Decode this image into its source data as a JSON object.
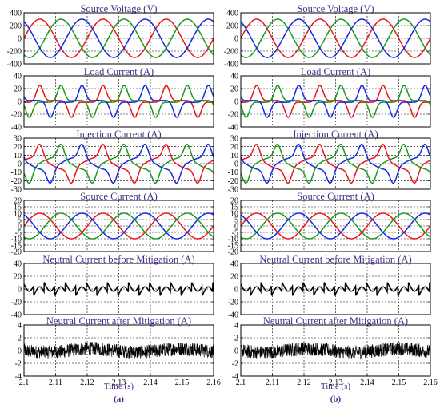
{
  "colors": {
    "phase_a": "#e8141b",
    "phase_b": "#1a9a1a",
    "phase_c": "#1428e0",
    "single": "#000000",
    "title": "#4a2a8a"
  },
  "panels": [
    {
      "label": "(a)",
      "xlabel": "Time (s)",
      "xticks": [
        "2.1",
        "2.11",
        "2.12",
        "2.13",
        "2.14",
        "2.15",
        "2.16"
      ]
    },
    {
      "label": "(b)",
      "xlabel": "Time (s)",
      "xticks": [
        "2.1",
        "2.11",
        "2.12",
        "2.13",
        "2.14",
        "2.15",
        "2.16"
      ]
    }
  ],
  "chart_data": [
    {
      "type": "line",
      "title": "Source Voltage (V)",
      "xlim": [
        2.1,
        2.16
      ],
      "ylim": [
        -400,
        400
      ],
      "yticks": [
        "400",
        "200",
        "0",
        "-200",
        "-400"
      ],
      "waveform": "sine",
      "fundamental_hz": 50,
      "amplitude": 300,
      "series": [
        {
          "color": "#e8141b",
          "phase_deg": 0
        },
        {
          "color": "#1a9a1a",
          "phase_deg": -120
        },
        {
          "color": "#1428e0",
          "phase_deg": 120
        }
      ],
      "grid": true
    },
    {
      "type": "line",
      "title": "Load Current (A)",
      "xlim": [
        2.1,
        2.16
      ],
      "ylim": [
        -40,
        40
      ],
      "yticks": [
        "40",
        "20",
        "0",
        "-20",
        "-40"
      ],
      "waveform": "nonlinear-load",
      "fundamental_hz": 50,
      "amplitude": 25,
      "series": [
        {
          "color": "#e8141b",
          "phase_deg": 0
        },
        {
          "color": "#1a9a1a",
          "phase_deg": -120
        },
        {
          "color": "#1428e0",
          "phase_deg": 120
        }
      ],
      "grid": true
    },
    {
      "type": "line",
      "title": "Injection Current (A)",
      "xlim": [
        2.1,
        2.16
      ],
      "ylim": [
        -30,
        30
      ],
      "yticks": [
        "30",
        "20",
        "10",
        "0",
        "-10",
        "-20",
        "-30"
      ],
      "waveform": "injection",
      "fundamental_hz": 50,
      "amplitude": 20,
      "series": [
        {
          "color": "#e8141b",
          "phase_deg": 0
        },
        {
          "color": "#1a9a1a",
          "phase_deg": -120
        },
        {
          "color": "#1428e0",
          "phase_deg": 120
        }
      ],
      "grid": true
    },
    {
      "type": "line",
      "title": "Source Current (A)",
      "xlim": [
        2.1,
        2.16
      ],
      "ylim": [
        -20,
        20
      ],
      "yticks": [
        "20",
        "15",
        "10",
        "5",
        "0",
        "-5",
        "-10",
        "-15",
        "-20"
      ],
      "waveform": "sine",
      "fundamental_hz": 50,
      "amplitude": 10,
      "series": [
        {
          "color": "#e8141b",
          "phase_deg": 0
        },
        {
          "color": "#1a9a1a",
          "phase_deg": -120
        },
        {
          "color": "#1428e0",
          "phase_deg": 120
        }
      ],
      "grid": true
    },
    {
      "type": "line",
      "title": "Neutral Current before Mitigation (A)",
      "xlim": [
        2.1,
        2.16
      ],
      "ylim": [
        -40,
        40
      ],
      "yticks": [
        "40",
        "20",
        "0",
        "-20",
        "-40"
      ],
      "waveform": "neutral-distorted",
      "fundamental_hz": 50,
      "amplitude": 20,
      "series": [
        {
          "color": "#000000",
          "phase_deg": 0
        }
      ],
      "grid": true
    },
    {
      "type": "line",
      "title": "Neutral Current after Mitigation (A)",
      "xlim": [
        2.1,
        2.16
      ],
      "ylim": [
        -4,
        4
      ],
      "yticks": [
        "4",
        "2",
        "0",
        "-2",
        "-4"
      ],
      "waveform": "noise",
      "amplitude": 0.9,
      "series": [
        {
          "color": "#000000",
          "phase_deg": 0
        }
      ],
      "grid": true
    }
  ]
}
